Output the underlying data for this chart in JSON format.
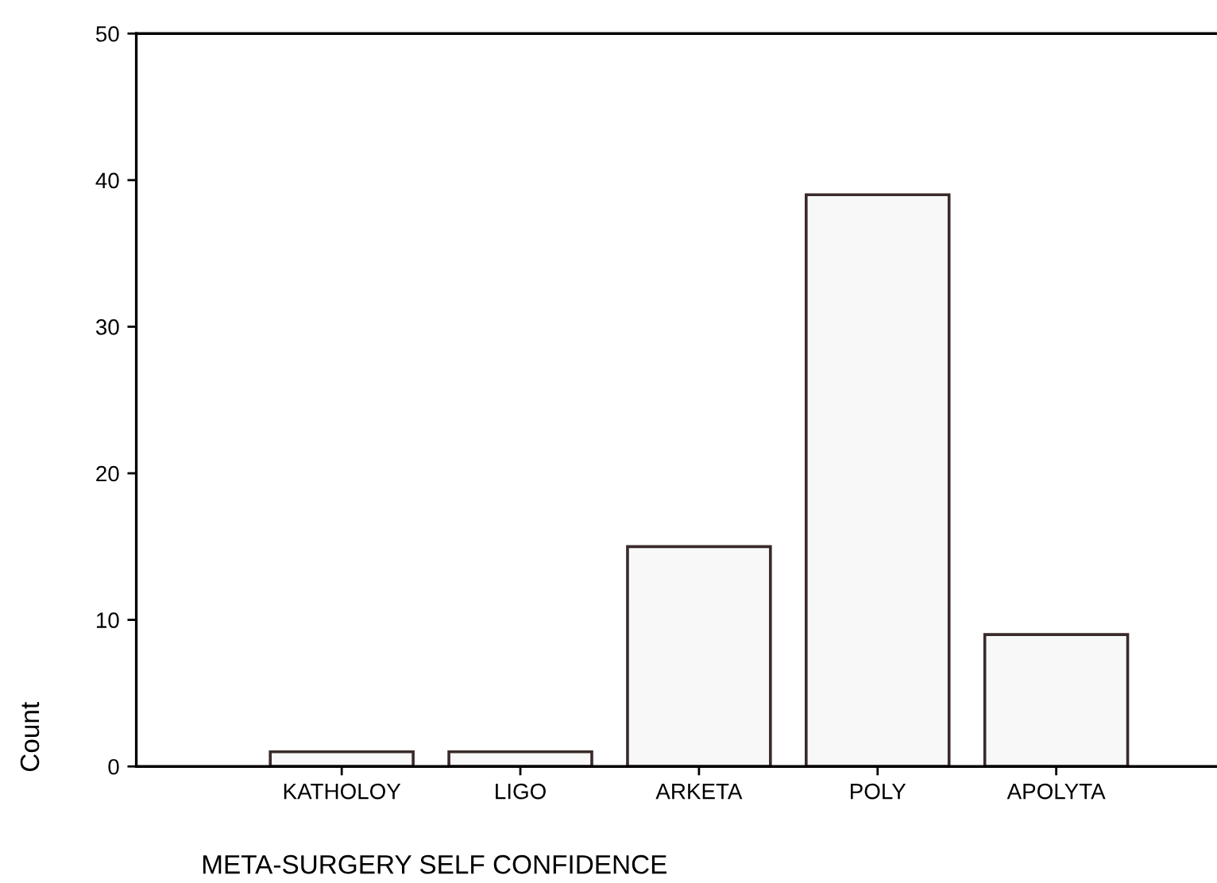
{
  "chart_data": {
    "type": "bar",
    "xlabel": "META-SURGERY SELF CONFIDENCE",
    "ylabel": "Count",
    "categories": [
      "KATHOLOY",
      "LIGO",
      "ARKETA",
      "POLY",
      "APOLYTA"
    ],
    "values": [
      1,
      1,
      15,
      39,
      9
    ],
    "color": "#f8f8f8",
    "ylim": [
      0,
      50
    ],
    "yticks": [
      0,
      10,
      20,
      30,
      40,
      50
    ],
    "grid": false,
    "legend": false
  }
}
